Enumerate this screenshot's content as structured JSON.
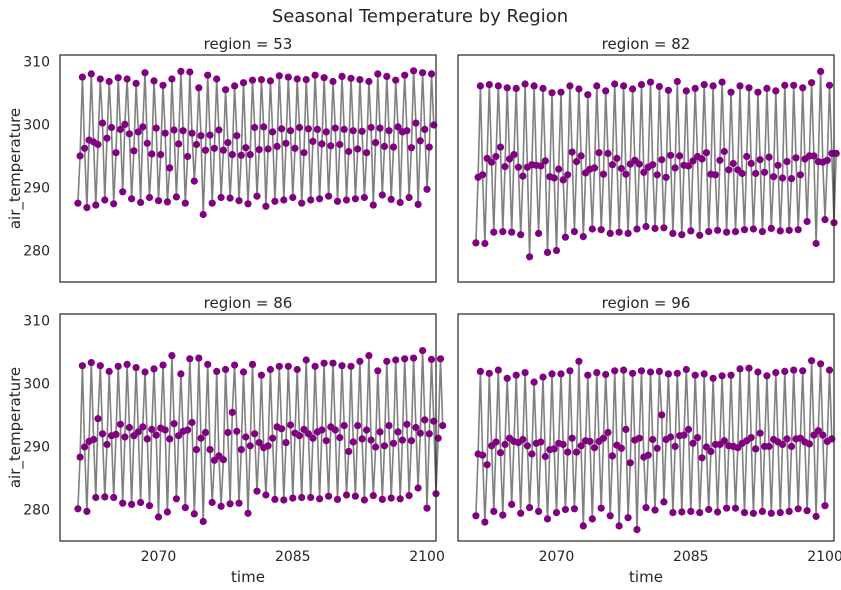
{
  "title": "Seasonal Temperature by Region",
  "colors": {
    "line": "#808080",
    "marker": "#800080",
    "frame": "#262626"
  },
  "chart_data": {
    "type": "line",
    "title": "Seasonal Temperature by Region",
    "xlabel": "time",
    "ylabel": "air_temperature",
    "x_ticks": [
      2070,
      2085,
      2100
    ],
    "y_ticks": [
      280,
      290,
      300,
      310
    ],
    "xlim": [
      2059,
      2101
    ],
    "ylim": [
      275,
      311
    ],
    "grid": false,
    "facet_titles": [
      "region = 53",
      "region = 82",
      "region = 86",
      "region = 96"
    ],
    "x_start": 2061.0,
    "x_step": 0.25,
    "panels": [
      {
        "title": "region = 53",
        "values": [
          287.5,
          295.0,
          307.5,
          296.2,
          286.8,
          297.5,
          308.0,
          297.2,
          287.2,
          296.8,
          307.2,
          300.2,
          288.0,
          297.8,
          306.8,
          299.5,
          287.4,
          295.5,
          307.4,
          299.2,
          289.3,
          300.0,
          307.2,
          298.5,
          288.2,
          295.8,
          306.5,
          298.8,
          287.6,
          299.6,
          308.2,
          297.0,
          288.4,
          295.3,
          306.9,
          299.4,
          287.9,
          295.2,
          306.2,
          298.6,
          287.7,
          293.1,
          307.2,
          299.1,
          288.5,
          296.9,
          308.4,
          299.0,
          287.5,
          294.9,
          308.3,
          298.6,
          291.0,
          296.8,
          305.8,
          298.2,
          285.7,
          295.9,
          307.8,
          298.3,
          287.5,
          296.2,
          307.2,
          299.1,
          288.4,
          295.9,
          305.5,
          297.1,
          288.3,
          295.2,
          306.1,
          298.2,
          287.9,
          295.1,
          306.6,
          296.3,
          287.4,
          295.2,
          307.0,
          299.5,
          288.6,
          296.0,
          307.1,
          299.6,
          287.0,
          296.1,
          306.9,
          298.8,
          287.8,
          296.5,
          307.7,
          299.3,
          288.0,
          297.0,
          307.5,
          299.0,
          288.4,
          296.2,
          307.2,
          299.5,
          287.5,
          295.5,
          307.1,
          299.3,
          288.0,
          297.3,
          307.8,
          299.2,
          288.2,
          296.9,
          307.4,
          298.8,
          288.6,
          296.6,
          306.8,
          299.4,
          287.8,
          296.8,
          307.6,
          299.2,
          288.0,
          295.7,
          307.3,
          299.0,
          288.2,
          296.1,
          307.1,
          298.9,
          288.4,
          295.5,
          306.8,
          299.5,
          287.2,
          297.1,
          308.0,
          299.4,
          288.8,
          296.5,
          307.6,
          299.0,
          288.1,
          296.4,
          307.0,
          299.6,
          287.6,
          298.8,
          307.8,
          299.0,
          288.4,
          296.3,
          308.5,
          300.2,
          287.3,
          297.4,
          308.2,
          299.2,
          289.7,
          296.4,
          308.0,
          299.9
        ]
      },
      {
        "title": "region = 82",
        "values": [
          281.2,
          291.6,
          306.1,
          292.0,
          281.1,
          294.6,
          306.3,
          294.0,
          282.9,
          294.9,
          306.1,
          296.4,
          283.0,
          293.3,
          305.8,
          294.5,
          282.9,
          295.2,
          305.7,
          293.2,
          282.5,
          291.8,
          306.4,
          293.2,
          279.0,
          293.6,
          306.1,
          293.5,
          282.7,
          293.4,
          305.7,
          294.2,
          279.7,
          291.7,
          305.0,
          291.5,
          280.0,
          292.9,
          305.1,
          291.2,
          282.1,
          292.0,
          306.1,
          295.6,
          283.0,
          294.1,
          305.6,
          295.0,
          282.2,
          292.3,
          304.7,
          292.9,
          283.4,
          293.1,
          306.1,
          295.5,
          283.3,
          292.1,
          305.3,
          295.4,
          282.7,
          293.6,
          306.4,
          294.6,
          282.9,
          293.0,
          306.1,
          292.1,
          282.7,
          293.7,
          305.6,
          294.3,
          283.4,
          293.7,
          306.3,
          292.4,
          283.8,
          293.2,
          306.7,
          293.6,
          283.5,
          292.0,
          306.0,
          294.4,
          283.6,
          291.6,
          305.4,
          295.1,
          282.7,
          293.1,
          306.8,
          295.0,
          282.5,
          293.5,
          305.3,
          293.4,
          283.1,
          294.2,
          305.7,
          294.9,
          282.4,
          294.5,
          306.3,
          295.5,
          283.0,
          292.1,
          306.1,
          292.0,
          283.2,
          294.3,
          306.7,
          295.7,
          282.9,
          292.8,
          305.1,
          293.8,
          283.0,
          292.8,
          306.1,
          292.2,
          283.3,
          294.9,
          305.8,
          293.8,
          283.4,
          292.2,
          305.1,
          294.4,
          283.0,
          292.4,
          305.7,
          294.8,
          283.5,
          291.7,
          305.3,
          293.5,
          283.1,
          291.5,
          306.2,
          294.1,
          283.2,
          291.4,
          306.2,
          294.7,
          283.3,
          292.0,
          305.8,
          294.5,
          284.6,
          295.0,
          306.6,
          295.0,
          281.1,
          294.1,
          308.4,
          294.0,
          284.9,
          294.3,
          306.2,
          295.4,
          284.4,
          295.4
        ]
      },
      {
        "title": "region = 86",
        "values": [
          280.1,
          288.3,
          302.8,
          289.9,
          279.7,
          290.8,
          303.3,
          291.1,
          281.9,
          294.4,
          302.8,
          292.0,
          282.0,
          290.3,
          301.9,
          291.7,
          281.9,
          291.9,
          302.7,
          293.5,
          281.0,
          291.5,
          303.0,
          293.0,
          280.8,
          291.7,
          302.5,
          292.3,
          281.1,
          293.1,
          301.8,
          291.2,
          280.6,
          292.7,
          302.3,
          291.8,
          278.8,
          292.9,
          302.9,
          292.6,
          279.6,
          291.2,
          304.4,
          293.6,
          281.7,
          291.7,
          301.5,
          292.4,
          280.3,
          292.6,
          303.9,
          293.8,
          279.3,
          289.5,
          304.0,
          291.3,
          278.1,
          292.2,
          303.0,
          289.5,
          281.1,
          287.8,
          301.9,
          288.5,
          280.5,
          287.9,
          302.2,
          292.2,
          280.9,
          295.4,
          302.9,
          292.4,
          281.0,
          289.5,
          301.8,
          291.5,
          279.4,
          290.1,
          303.0,
          292.0,
          282.9,
          290.6,
          301.3,
          289.8,
          282.3,
          290.1,
          302.2,
          291.3,
          281.6,
          293.1,
          302.7,
          292.8,
          281.5,
          290.6,
          302.7,
          293.4,
          281.8,
          292.1,
          302.2,
          291.7,
          281.9,
          292.7,
          303.7,
          292.0,
          281.9,
          291.3,
          302.7,
          292.3,
          281.7,
          292.6,
          303.2,
          290.9,
          282.1,
          293.1,
          303.2,
          292.6,
          281.6,
          291.4,
          302.8,
          293.3,
          282.3,
          289.2,
          302.7,
          290.7,
          282.1,
          293.3,
          303.5,
          291.2,
          281.5,
          292.6,
          304.4,
          291.0,
          282.2,
          289.9,
          302.0,
          292.3,
          281.6,
          290.1,
          303.5,
          293.3,
          281.8,
          290.5,
          303.7,
          292.3,
          281.7,
          291.0,
          303.9,
          293.5,
          282.2,
          290.9,
          304.0,
          293.0,
          283.4,
          292.1,
          305.2,
          294.2,
          280.2,
          292.0,
          303.8,
          294.0,
          282.5,
          291.3,
          303.9,
          293.3
        ]
      },
      {
        "title": "region = 96",
        "values": [
          279.0,
          288.8,
          301.9,
          288.6,
          278.0,
          287.1,
          301.6,
          290.1,
          279.7,
          290.7,
          302.1,
          289.0,
          279.1,
          290.3,
          300.8,
          291.3,
          280.8,
          290.8,
          301.3,
          290.6,
          279.4,
          291.1,
          301.7,
          290.1,
          280.3,
          288.8,
          300.2,
          290.5,
          279.7,
          290.7,
          301.0,
          288.4,
          278.5,
          289.5,
          301.5,
          289.6,
          279.5,
          290.5,
          301.5,
          290.3,
          280.0,
          289.1,
          302.0,
          291.3,
          280.1,
          289.1,
          303.5,
          290.1,
          277.4,
          290.9,
          301.3,
          290.8,
          278.5,
          289.8,
          301.7,
          290.8,
          280.2,
          291.3,
          301.4,
          292.2,
          279.0,
          288.5,
          302.0,
          290.2,
          277.4,
          289.7,
          302.1,
          292.7,
          278.7,
          287.4,
          301.6,
          291.0,
          276.8,
          291.3,
          302.0,
          288.3,
          280.3,
          288.6,
          301.8,
          291.1,
          279.9,
          289.7,
          301.9,
          295.0,
          281.2,
          291.1,
          301.5,
          291.5,
          279.5,
          290.0,
          301.6,
          291.7,
          279.6,
          291.8,
          302.2,
          292.7,
          279.7,
          290.5,
          301.3,
          291.4,
          279.5,
          288.2,
          301.5,
          289.9,
          280.0,
          289.2,
          300.8,
          290.3,
          279.6,
          290.3,
          301.2,
          290.9,
          280.2,
          290.1,
          301.3,
          290.0,
          280.2,
          289.8,
          302.3,
          290.5,
          279.5,
          290.9,
          302.4,
          291.4,
          279.4,
          289.6,
          301.8,
          292.1,
          279.7,
          290.0,
          301.2,
          290.0,
          279.4,
          291.1,
          301.7,
          290.7,
          279.5,
          290.3,
          301.9,
          291.2,
          279.7,
          290.0,
          302.1,
          291.2,
          280.1,
          291.3,
          302.0,
          290.7,
          279.8,
          290.4,
          303.6,
          291.8,
          278.9,
          292.5,
          303.1,
          291.8,
          280.6,
          290.8,
          302.1,
          291.2
        ]
      }
    ]
  }
}
